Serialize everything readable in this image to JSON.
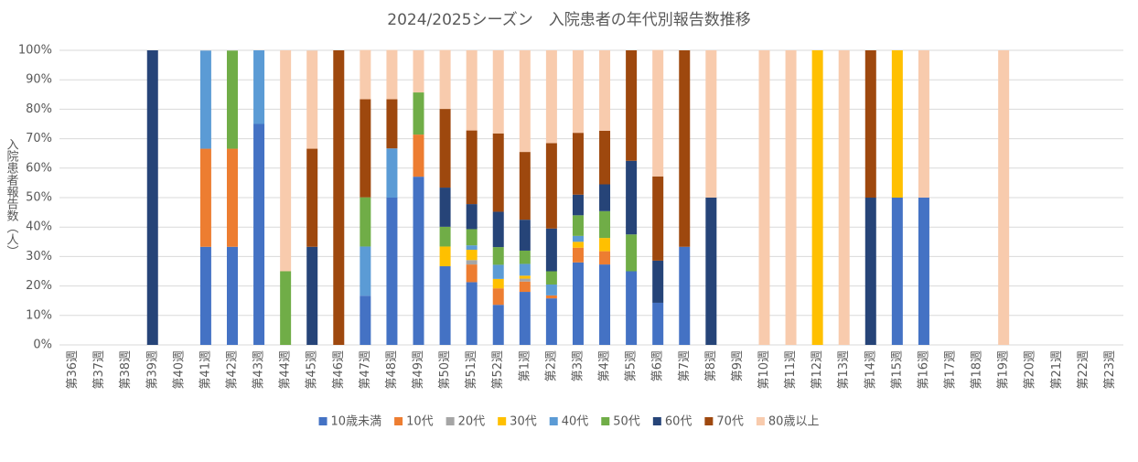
{
  "chart_data": {
    "type": "stacked_bar",
    "title": "2024/2025シーズン　入院患者の年代別報告数推移",
    "y_label": "入院患者報告数（人）",
    "categories": [
      "第36週",
      "第37週",
      "第38週",
      "第39週",
      "第40週",
      "第41週",
      "第42週",
      "第43週",
      "第44週",
      "第45週",
      "第46週",
      "第47週",
      "第48週",
      "第49週",
      "第50週",
      "第51週",
      "第52週",
      "第1週",
      "第2週",
      "第3週",
      "第4週",
      "第5週",
      "第6週",
      "第7週",
      "第8週",
      "第9週",
      "第10週",
      "第11週",
      "第12週",
      "第13週",
      "第14週",
      "第15週",
      "第16週",
      "第17週",
      "第18週",
      "第19週",
      "第20週",
      "第21週",
      "第22週",
      "第23週"
    ],
    "series": [
      {
        "name": "10歳未満",
        "color": "#4472c4",
        "values": [
          0,
          0,
          0,
          0,
          0,
          33.3,
          33.3,
          75,
          0,
          0,
          0,
          16.7,
          50,
          57.1,
          26.7,
          21.3,
          13.6,
          18,
          15.8,
          28,
          27.3,
          25,
          14.3,
          33.3,
          0,
          0,
          0,
          0,
          0,
          0,
          0,
          50,
          50,
          0,
          0,
          0,
          0,
          0,
          0,
          0
        ]
      },
      {
        "name": "10代",
        "color": "#ed7d31",
        "values": [
          0,
          0,
          0,
          0,
          0,
          33.3,
          33.3,
          0,
          0,
          0,
          0,
          0,
          0,
          14.3,
          0,
          6,
          5.6,
          3.5,
          1,
          5,
          4.5,
          0,
          0,
          0,
          0,
          0,
          0,
          0,
          0,
          0,
          0,
          0,
          0,
          0,
          0,
          0,
          0,
          0,
          0,
          0
        ]
      },
      {
        "name": "20代",
        "color": "#a5a5a5",
        "values": [
          0,
          0,
          0,
          0,
          0,
          0,
          0,
          0,
          0,
          0,
          0,
          0,
          0,
          0,
          0,
          1.5,
          0,
          1,
          0,
          0,
          0,
          0,
          0,
          0,
          0,
          0,
          0,
          0,
          0,
          0,
          0,
          0,
          0,
          0,
          0,
          0,
          0,
          0,
          0,
          0
        ]
      },
      {
        "name": "30代",
        "color": "#ffc000",
        "values": [
          0,
          0,
          0,
          0,
          0,
          0,
          0,
          0,
          0,
          0,
          0,
          0,
          0,
          0,
          6.7,
          3.5,
          3.2,
          1,
          0,
          2,
          4.5,
          0,
          0,
          0,
          0,
          0,
          0,
          0,
          100,
          0,
          0,
          50,
          0,
          0,
          0,
          0,
          0,
          0,
          0,
          0
        ]
      },
      {
        "name": "40代",
        "color": "#5b9bd5",
        "values": [
          0,
          0,
          0,
          0,
          0,
          33.3,
          0,
          25,
          0,
          0,
          0,
          16.7,
          16.7,
          0,
          0,
          1.5,
          4.8,
          4,
          3.7,
          2,
          0,
          0,
          0,
          0,
          0,
          0,
          0,
          0,
          0,
          0,
          0,
          0,
          0,
          0,
          0,
          0,
          0,
          0,
          0,
          0
        ]
      },
      {
        "name": "50代",
        "color": "#70ad47",
        "values": [
          0,
          0,
          0,
          0,
          0,
          0,
          33.3,
          0,
          25,
          0,
          0,
          16.7,
          0,
          14.3,
          6.7,
          5.5,
          6,
          4.5,
          4.5,
          7,
          9.1,
          12.5,
          0,
          0,
          0,
          0,
          0,
          0,
          0,
          0,
          0,
          0,
          0,
          0,
          0,
          0,
          0,
          0,
          0,
          0
        ]
      },
      {
        "name": "60代",
        "color": "#264478",
        "values": [
          0,
          0,
          0,
          100,
          0,
          0,
          0,
          0,
          0,
          33.3,
          0,
          0,
          0,
          0,
          13.3,
          8.5,
          12,
          10.5,
          14.5,
          7,
          9.1,
          25,
          14.3,
          0,
          50,
          0,
          0,
          0,
          0,
          0,
          50,
          0,
          0,
          0,
          0,
          0,
          0,
          0,
          0,
          0
        ]
      },
      {
        "name": "70代",
        "color": "#9e480e",
        "values": [
          0,
          0,
          0,
          0,
          0,
          0,
          0,
          0,
          0,
          33.3,
          100,
          33.3,
          16.7,
          0,
          26.7,
          25,
          26.6,
          23,
          29,
          21,
          18.2,
          37.5,
          28.6,
          66.7,
          0,
          0,
          0,
          0,
          0,
          0,
          50,
          0,
          0,
          0,
          0,
          0,
          0,
          0,
          0,
          0
        ]
      },
      {
        "name": "80歳以上",
        "color": "#f8cbad",
        "values": [
          0,
          0,
          0,
          0,
          0,
          0,
          0,
          0,
          75,
          33.3,
          0,
          16.7,
          16.7,
          14.3,
          20,
          27.2,
          28.2,
          34.5,
          31.5,
          28,
          27.3,
          0,
          42.9,
          0,
          50,
          0,
          100,
          100,
          0,
          100,
          0,
          0,
          50,
          0,
          0,
          100,
          0,
          0,
          0,
          0
        ]
      }
    ],
    "ylim": [
      0,
      100
    ],
    "yticks": [
      {
        "value": 0,
        "label": "0%"
      },
      {
        "value": 10,
        "label": "10%"
      },
      {
        "value": 20,
        "label": "20%"
      },
      {
        "value": 30,
        "label": "30%"
      },
      {
        "value": 40,
        "label": "40%"
      },
      {
        "value": 50,
        "label": "50%"
      },
      {
        "value": 60,
        "label": "60%"
      },
      {
        "value": 70,
        "label": "70%"
      },
      {
        "value": 80,
        "label": "80%"
      },
      {
        "value": 90,
        "label": "90%"
      },
      {
        "value": 100,
        "label": "100%"
      }
    ],
    "grid": true,
    "legend": "bottom"
  }
}
